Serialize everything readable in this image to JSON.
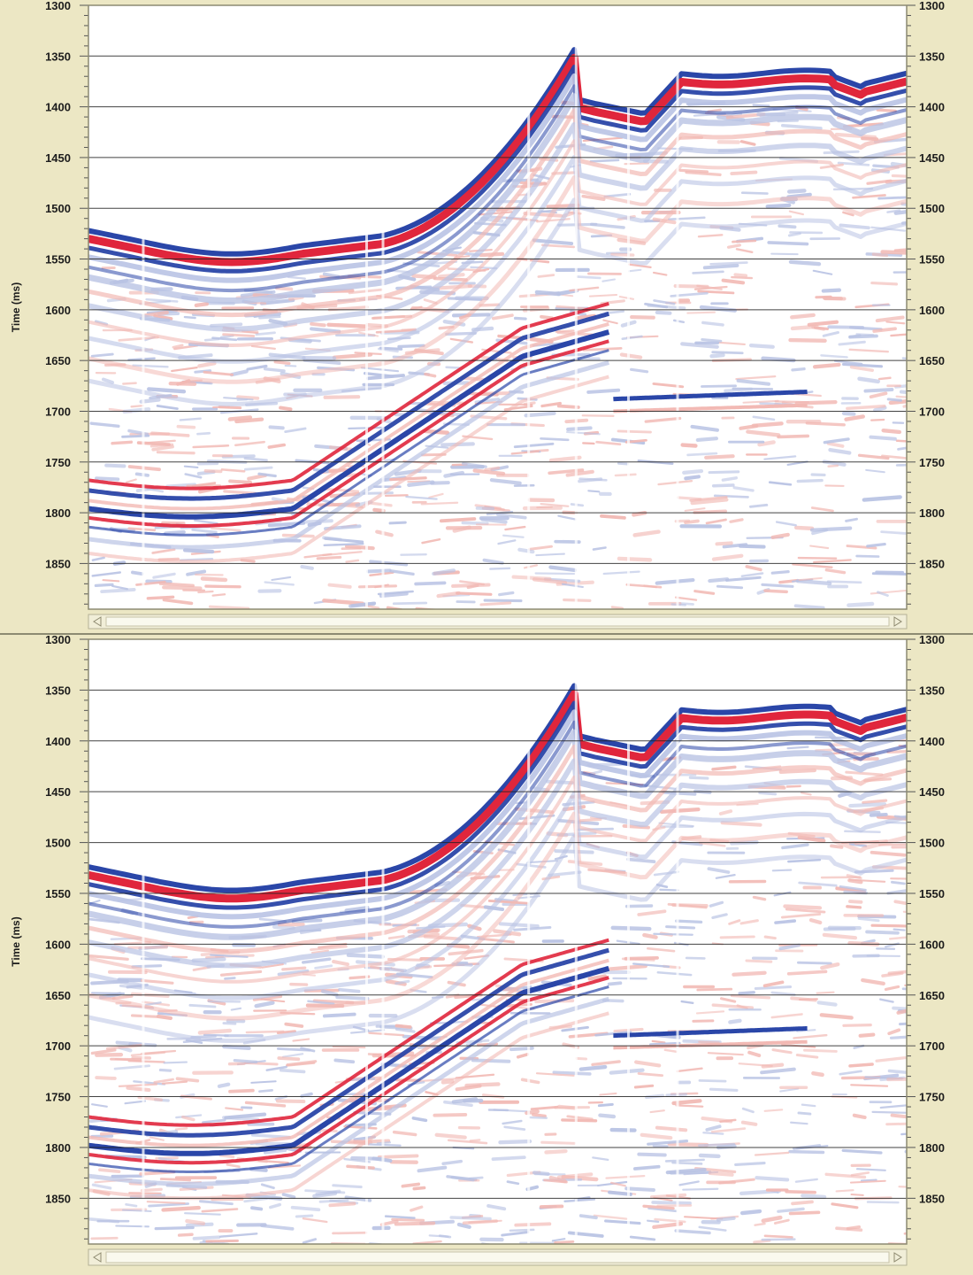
{
  "colors": {
    "panel_bg": "#ece7c4",
    "plot_bg": "#ffffff",
    "border": "#8c8a72",
    "gridline": "#222222",
    "positive": "#e0263c",
    "negative": "#2a46a8",
    "positive_faint": "#f2b9b4",
    "negative_faint": "#b9c3e4"
  },
  "icons": {
    "scroll_left": "scroll-left-arrow-icon",
    "scroll_right": "scroll-right-arrow-icon"
  },
  "panels": [
    {
      "id": "top",
      "axis_title": "Time (ms)",
      "time_range_ms": [
        1300,
        1895
      ],
      "ticks": [
        "1300",
        "1350",
        "1400",
        "1450",
        "1500",
        "1550",
        "1600",
        "1650",
        "1700",
        "1750",
        "1800",
        "1850"
      ]
    },
    {
      "id": "bottom",
      "axis_title": "Time (ms)",
      "time_range_ms": [
        1300,
        1895
      ],
      "ticks": [
        "1300",
        "1350",
        "1400",
        "1450",
        "1500",
        "1550",
        "1600",
        "1650",
        "1700",
        "1750",
        "1800",
        "1850"
      ]
    }
  ]
}
